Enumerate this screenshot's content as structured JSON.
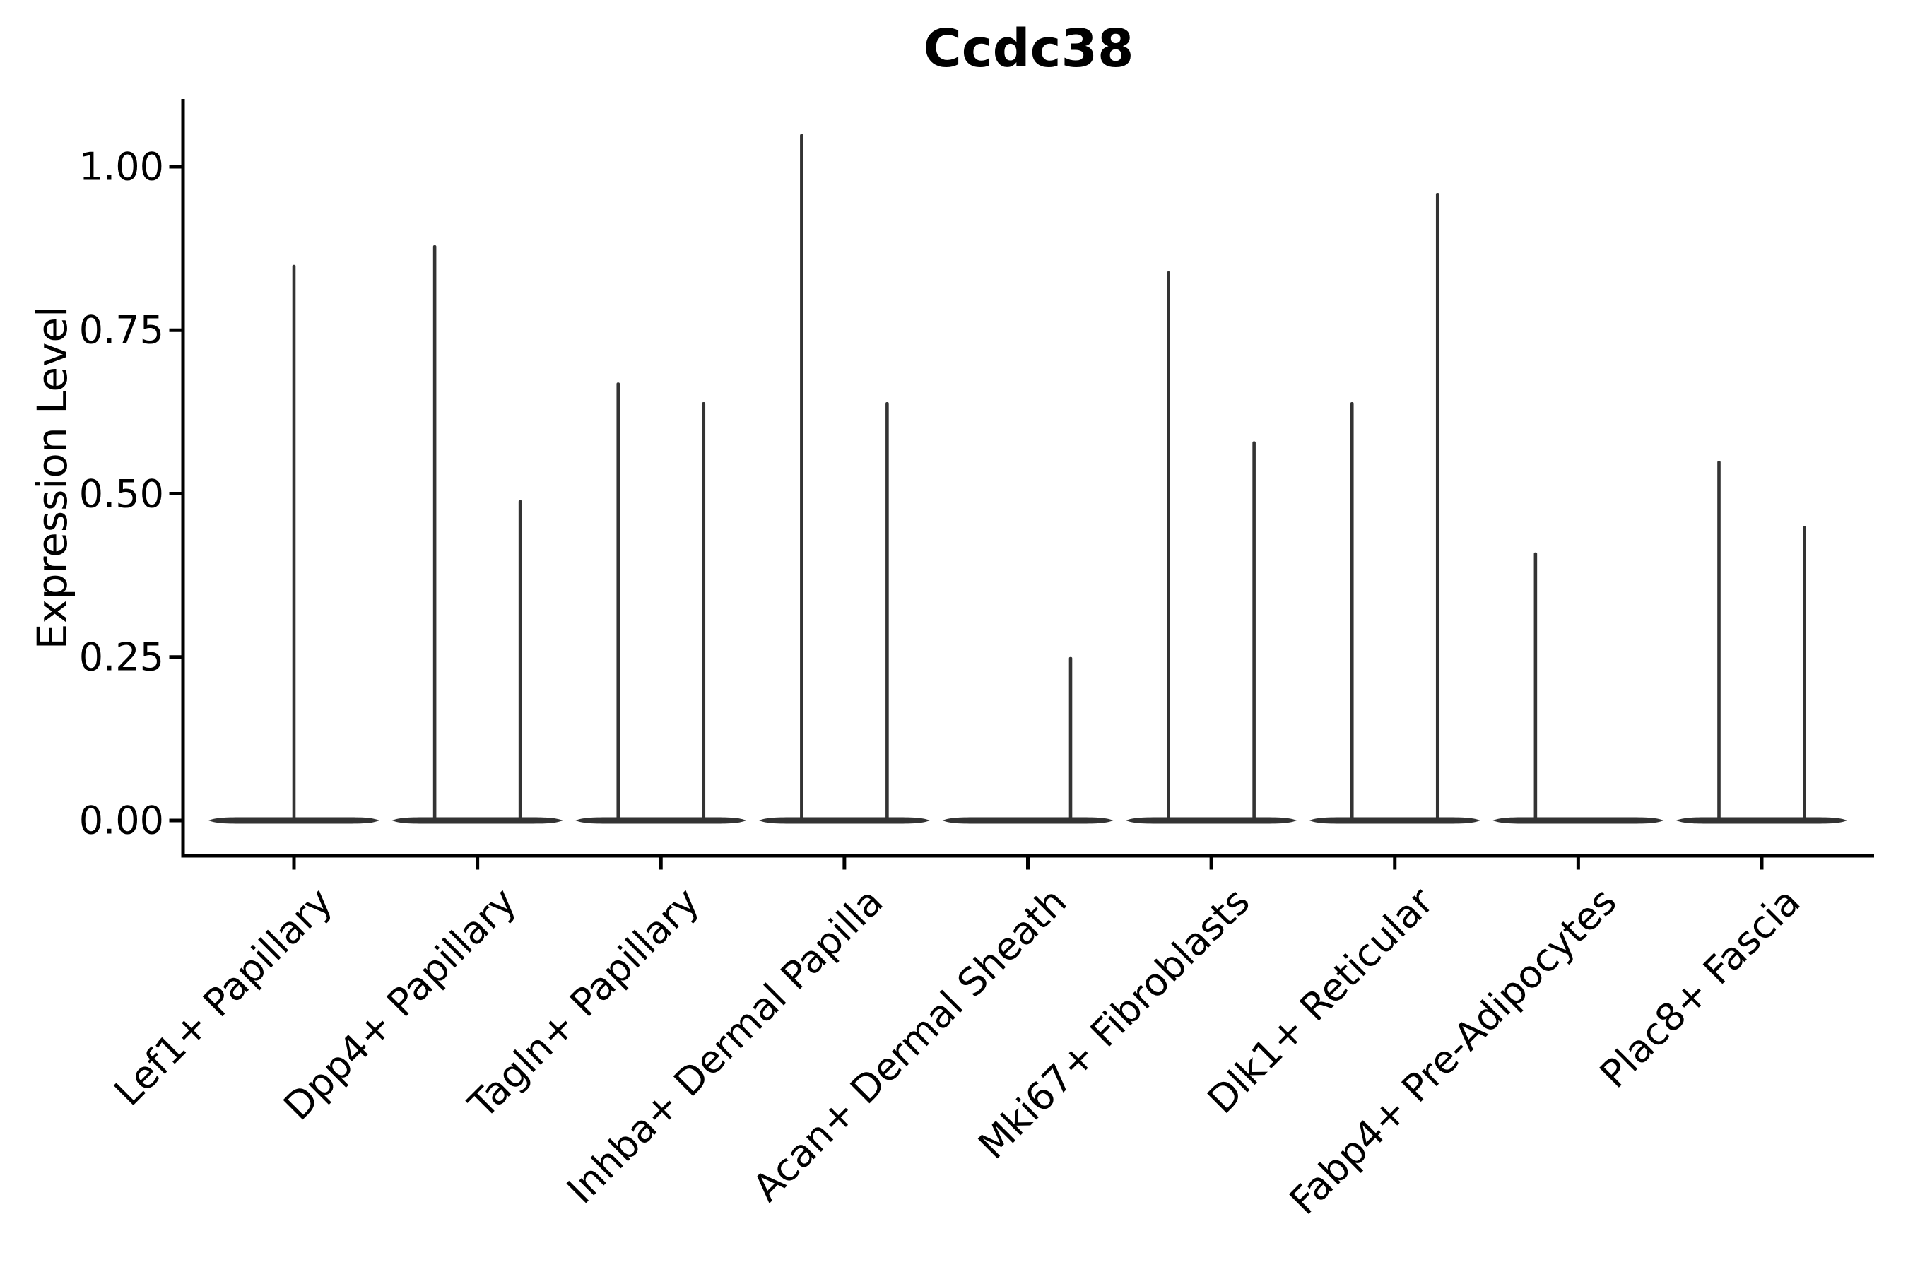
{
  "figure": {
    "title": "Ccdc38",
    "ylabel": "Expression Level",
    "background": "#ffffff"
  },
  "chart_data": {
    "type": "violin",
    "title": "Ccdc38",
    "xlabel": "",
    "ylabel": "Expression Level",
    "ylim": [
      -0.05,
      1.1
    ],
    "grid": false,
    "legend": "none",
    "colors": {
      "violin_fill": "#333333",
      "axis": "#000000",
      "text": "#000000",
      "background": "#ffffff"
    },
    "yticks": [
      {
        "value": 0.0,
        "label": "0.00"
      },
      {
        "value": 0.25,
        "label": "0.25"
      },
      {
        "value": 0.5,
        "label": "0.50"
      },
      {
        "value": 0.75,
        "label": "0.75"
      },
      {
        "value": 1.0,
        "label": "1.00"
      }
    ],
    "categories": [
      "Lef1+ Papillary",
      "Dpp4+ Papillary",
      "Tagln+ Papillary",
      "Inhba+ Dermal Papilla",
      "Acan+ Dermal Sheath",
      "Mki67+ Fibroblasts",
      "Dlk1+ Reticular",
      "Fabp4+ Pre-Adipocytes",
      "Plac8+ Fascia"
    ],
    "groups": [
      {
        "category": "Lef1+ Papillary",
        "violins": [
          {
            "slot": "full",
            "max_expression": 0.85
          }
        ]
      },
      {
        "category": "Dpp4+ Papillary",
        "violins": [
          {
            "slot": "left",
            "max_expression": 0.88
          },
          {
            "slot": "right",
            "max_expression": 0.49
          }
        ]
      },
      {
        "category": "Tagln+ Papillary",
        "violins": [
          {
            "slot": "left",
            "max_expression": 0.67
          },
          {
            "slot": "right",
            "max_expression": 0.64
          }
        ]
      },
      {
        "category": "Inhba+ Dermal Papilla",
        "violins": [
          {
            "slot": "left",
            "max_expression": 1.05
          },
          {
            "slot": "right",
            "max_expression": 0.64
          }
        ]
      },
      {
        "category": "Acan+ Dermal Sheath",
        "violins": [
          {
            "slot": "left",
            "max_expression": 0
          },
          {
            "slot": "right",
            "max_expression": 0.25
          }
        ]
      },
      {
        "category": "Mki67+ Fibroblasts",
        "violins": [
          {
            "slot": "left",
            "max_expression": 0.84
          },
          {
            "slot": "right",
            "max_expression": 0.58
          }
        ]
      },
      {
        "category": "Dlk1+ Reticular",
        "violins": [
          {
            "slot": "left",
            "max_expression": 0.64
          },
          {
            "slot": "right",
            "max_expression": 0.96
          }
        ]
      },
      {
        "category": "Fabp4+ Pre-Adipocytes",
        "violins": [
          {
            "slot": "left",
            "max_expression": 0.41
          },
          {
            "slot": "right",
            "max_expression": 0
          }
        ]
      },
      {
        "category": "Plac8+ Fascia",
        "violins": [
          {
            "slot": "left",
            "max_expression": 0.55
          },
          {
            "slot": "right",
            "max_expression": 0.45
          }
        ]
      }
    ],
    "notes": "Each violin is flat at 0 (most cells not expressing) with a thin vertical tail reaching the max expression value. Single-violin groups span the full category width; paired violins sit at category center ±60px."
  }
}
